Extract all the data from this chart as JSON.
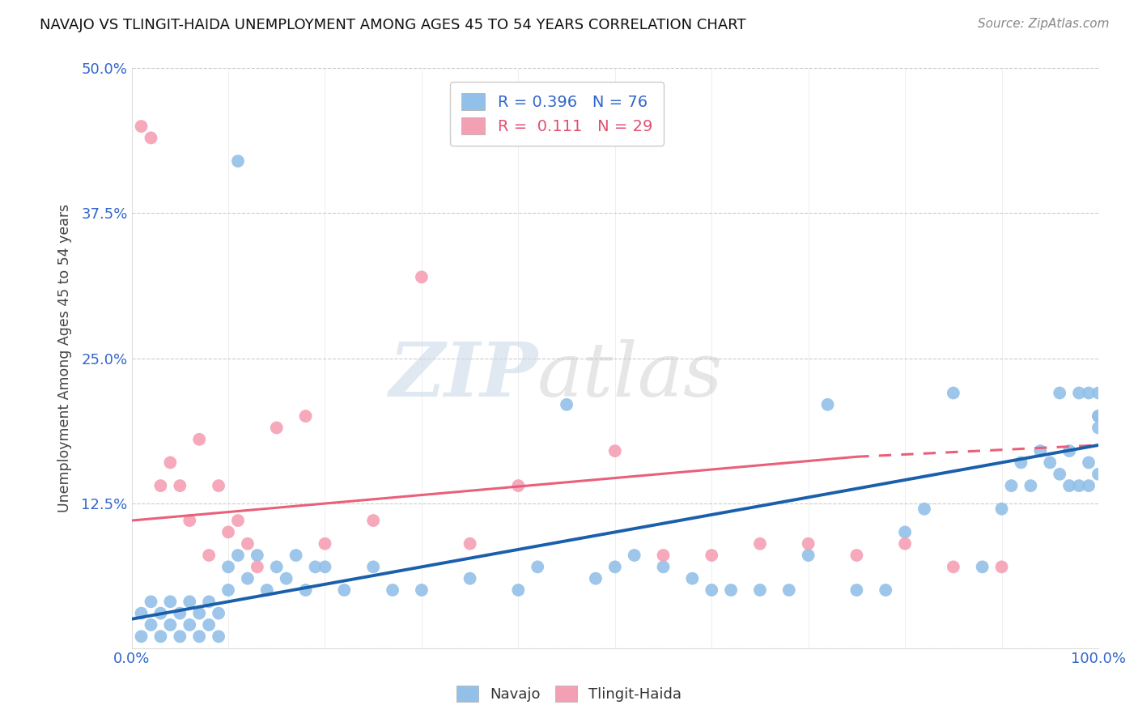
{
  "title": "NAVAJO VS TLINGIT-HAIDA UNEMPLOYMENT AMONG AGES 45 TO 54 YEARS CORRELATION CHART",
  "source": "Source: ZipAtlas.com",
  "ylabel": "Unemployment Among Ages 45 to 54 years",
  "xlim": [
    0,
    100
  ],
  "ylim": [
    0,
    50
  ],
  "yticks": [
    0,
    12.5,
    25,
    37.5,
    50
  ],
  "ytick_labels": [
    "",
    "12.5%",
    "25.0%",
    "37.5%",
    "50.0%"
  ],
  "navajo_R": 0.396,
  "navajo_N": 76,
  "tlingit_R": 0.111,
  "tlingit_N": 29,
  "navajo_color": "#92C0E8",
  "tlingit_color": "#F4A0B4",
  "navajo_line_color": "#1A5FAB",
  "tlingit_line_color": "#E8607A",
  "background_color": "#FFFFFF",
  "watermark_zip": "ZIP",
  "watermark_atlas": "atlas",
  "nav_x": [
    1,
    1,
    2,
    2,
    3,
    3,
    4,
    4,
    5,
    5,
    6,
    6,
    7,
    7,
    8,
    8,
    9,
    9,
    10,
    10,
    11,
    11,
    12,
    13,
    14,
    15,
    16,
    17,
    18,
    19,
    20,
    22,
    25,
    27,
    30,
    35,
    40,
    42,
    45,
    48,
    50,
    52,
    55,
    58,
    60,
    62,
    65,
    68,
    70,
    72,
    75,
    78,
    80,
    82,
    85,
    88,
    90,
    91,
    92,
    93,
    94,
    95,
    96,
    96,
    97,
    97,
    98,
    98,
    99,
    99,
    99,
    100,
    100,
    100,
    100,
    100
  ],
  "nav_y": [
    1,
    3,
    2,
    4,
    1,
    3,
    2,
    4,
    1,
    3,
    2,
    4,
    1,
    3,
    2,
    4,
    1,
    3,
    5,
    7,
    42,
    8,
    6,
    8,
    5,
    7,
    6,
    8,
    5,
    7,
    7,
    5,
    7,
    5,
    5,
    6,
    5,
    7,
    21,
    6,
    7,
    8,
    7,
    6,
    5,
    5,
    5,
    5,
    8,
    21,
    5,
    5,
    10,
    12,
    22,
    7,
    12,
    14,
    16,
    14,
    17,
    16,
    15,
    22,
    14,
    17,
    22,
    14,
    16,
    22,
    14,
    20,
    22,
    15,
    20,
    19
  ],
  "tli_x": [
    1,
    2,
    3,
    4,
    5,
    6,
    7,
    8,
    9,
    10,
    11,
    12,
    13,
    15,
    18,
    20,
    25,
    30,
    35,
    40,
    50,
    55,
    60,
    65,
    70,
    75,
    80,
    85,
    90
  ],
  "tli_y": [
    45,
    44,
    14,
    16,
    14,
    11,
    18,
    8,
    14,
    10,
    11,
    9,
    7,
    19,
    20,
    9,
    11,
    32,
    9,
    14,
    17,
    8,
    8,
    9,
    9,
    8,
    9,
    7,
    7
  ],
  "nav_line_x0": 0,
  "nav_line_y0": 2.5,
  "nav_line_x1": 100,
  "nav_line_y1": 17.5,
  "tli_line_x0": 0,
  "tli_line_y0": 11.0,
  "tli_line_x1": 75,
  "tli_line_y1": 16.5,
  "tli_line_dash_x0": 75,
  "tli_line_dash_y0": 16.5,
  "tli_line_dash_x1": 100,
  "tli_line_dash_y1": 17.5
}
